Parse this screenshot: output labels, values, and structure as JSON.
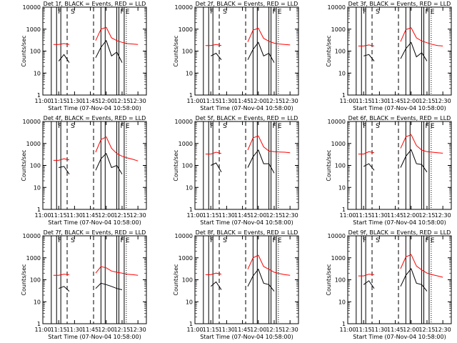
{
  "x_ticks": [
    "11:00",
    "11:15",
    "11:30",
    "11:45",
    "12:00",
    "12:15",
    "12:30"
  ],
  "y_ticks": [
    "1",
    "10",
    "100",
    "1000",
    "10000"
  ],
  "ylabel": "Counts/sec",
  "xlabel": "Start Time (07-Nov-04 10:58:00)",
  "colors": {
    "events": "#000000",
    "lld": "#ff0000"
  },
  "chart_data": [
    {
      "type": "line",
      "title": "Det 1f, BLACK = Events, RED = LLD",
      "xlabel": "Start Time (07-Nov-04 10:58:00)",
      "ylabel": "Counts/sec",
      "yscale": "log",
      "ylim": [
        1,
        10000
      ],
      "x": [
        "11:00",
        "11:10",
        "11:15",
        "11:20",
        "11:25",
        "11:30",
        "11:35",
        "11:40",
        "11:45",
        "11:50",
        "11:55",
        "12:00",
        "12:05",
        "12:10",
        "12:15",
        "12:20",
        "12:25",
        "12:30",
        "12:35"
      ],
      "series": [
        {
          "name": "Events",
          "values": [
            null,
            null,
            35,
            70,
            30,
            null,
            null,
            null,
            null,
            50,
            150,
            300,
            60,
            90,
            30,
            null,
            null,
            null,
            null
          ]
        },
        {
          "name": "LLD",
          "values": [
            null,
            200,
            200,
            220,
            200,
            null,
            null,
            null,
            null,
            300,
            1000,
            1200,
            400,
            300,
            250,
            220,
            210,
            200,
            null
          ]
        }
      ]
    },
    {
      "type": "line",
      "title": "Det 2f, BLACK = Events, RED = LLD",
      "xlabel": "Start Time (07-Nov-04 10:58:00)",
      "ylabel": "Counts/sec",
      "yscale": "log",
      "ylim": [
        1,
        10000
      ],
      "x": [
        "11:00",
        "11:10",
        "11:15",
        "11:20",
        "11:25",
        "11:30",
        "11:35",
        "11:40",
        "11:45",
        "11:50",
        "11:55",
        "12:00",
        "12:05",
        "12:10",
        "12:15",
        "12:20",
        "12:25",
        "12:30",
        "12:35"
      ],
      "series": [
        {
          "name": "Events",
          "values": [
            null,
            null,
            60,
            80,
            40,
            null,
            null,
            null,
            null,
            40,
            120,
            250,
            60,
            80,
            30,
            null,
            null,
            null,
            null
          ]
        },
        {
          "name": "LLD",
          "values": [
            null,
            180,
            180,
            200,
            180,
            null,
            null,
            null,
            null,
            260,
            900,
            1100,
            380,
            280,
            230,
            210,
            200,
            190,
            null
          ]
        }
      ]
    },
    {
      "type": "line",
      "title": "Det 3f, BLACK = Events, RED = LLD",
      "xlabel": "Start Time (07-Nov-04 10:58:00)",
      "ylabel": "Counts/sec",
      "yscale": "log",
      "ylim": [
        1,
        10000
      ],
      "x": [
        "11:00",
        "11:10",
        "11:15",
        "11:20",
        "11:25",
        "11:30",
        "11:35",
        "11:40",
        "11:45",
        "11:50",
        "11:55",
        "12:00",
        "12:05",
        "12:10",
        "12:15",
        "12:20",
        "12:25",
        "12:30",
        "12:35"
      ],
      "series": [
        {
          "name": "Events",
          "values": [
            null,
            null,
            60,
            70,
            35,
            null,
            null,
            null,
            null,
            45,
            130,
            250,
            55,
            85,
            35,
            null,
            null,
            null,
            null
          ]
        },
        {
          "name": "LLD",
          "values": [
            null,
            170,
            170,
            190,
            170,
            null,
            null,
            null,
            null,
            270,
            950,
            1150,
            400,
            290,
            240,
            200,
            180,
            170,
            null
          ]
        }
      ]
    },
    {
      "type": "line",
      "title": "Det 4f, BLACK = Events, RED = LLD",
      "xlabel": "Start Time (07-Nov-04 10:58:00)",
      "ylabel": "Counts/sec",
      "yscale": "log",
      "ylim": [
        1,
        10000
      ],
      "x": [
        "11:00",
        "11:10",
        "11:15",
        "11:20",
        "11:25",
        "11:30",
        "11:35",
        "11:40",
        "11:45",
        "11:50",
        "11:55",
        "12:00",
        "12:05",
        "12:10",
        "12:15",
        "12:20",
        "12:25",
        "12:30",
        "12:35"
      ],
      "series": [
        {
          "name": "Events",
          "values": [
            null,
            null,
            80,
            90,
            40,
            null,
            null,
            null,
            null,
            60,
            200,
            350,
            80,
            100,
            40,
            null,
            null,
            null,
            null
          ]
        },
        {
          "name": "LLD",
          "values": [
            null,
            170,
            170,
            200,
            180,
            null,
            null,
            null,
            null,
            400,
            1500,
            2000,
            600,
            350,
            260,
            220,
            190,
            160,
            null
          ]
        }
      ]
    },
    {
      "type": "line",
      "title": "Det 5f, BLACK = Events, RED = LLD",
      "xlabel": "Start Time (07-Nov-04 10:58:00)",
      "ylabel": "Counts/sec",
      "yscale": "log",
      "ylim": [
        1,
        10000
      ],
      "x": [
        "11:00",
        "11:10",
        "11:15",
        "11:20",
        "11:25",
        "11:30",
        "11:35",
        "11:40",
        "11:45",
        "11:50",
        "11:55",
        "12:00",
        "12:05",
        "12:10",
        "12:15",
        "12:20",
        "12:25",
        "12:30",
        "12:35"
      ],
      "series": [
        {
          "name": "Events",
          "values": [
            null,
            null,
            100,
            130,
            50,
            null,
            null,
            null,
            null,
            80,
            250,
            500,
            120,
            120,
            45,
            null,
            null,
            null,
            null
          ]
        },
        {
          "name": "LLD",
          "values": [
            null,
            330,
            330,
            400,
            350,
            null,
            null,
            null,
            null,
            500,
            1800,
            2200,
            700,
            450,
            420,
            410,
            400,
            380,
            null
          ]
        }
      ]
    },
    {
      "type": "line",
      "title": "Det 6f, BLACK = Events, RED = LLD",
      "xlabel": "Start Time (07-Nov-04 10:58:00)",
      "ylabel": "Counts/sec",
      "yscale": "log",
      "ylim": [
        1,
        10000
      ],
      "x": [
        "11:00",
        "11:10",
        "11:15",
        "11:20",
        "11:25",
        "11:30",
        "11:35",
        "11:40",
        "11:45",
        "11:50",
        "11:55",
        "12:00",
        "12:05",
        "12:10",
        "12:15",
        "12:20",
        "12:25",
        "12:30",
        "12:35"
      ],
      "series": [
        {
          "name": "Events",
          "values": [
            null,
            null,
            90,
            120,
            60,
            null,
            null,
            null,
            null,
            80,
            260,
            520,
            120,
            110,
            50,
            null,
            null,
            null,
            null
          ]
        },
        {
          "name": "LLD",
          "values": [
            null,
            330,
            330,
            420,
            380,
            null,
            null,
            null,
            null,
            600,
            2000,
            2500,
            800,
            500,
            420,
            400,
            380,
            360,
            null
          ]
        }
      ]
    },
    {
      "type": "line",
      "title": "Det 7f, BLACK = Events, RED = LLD",
      "xlabel": "Start Time (07-Nov-04 10:58:00)",
      "ylabel": "Counts/sec",
      "yscale": "log",
      "ylim": [
        1,
        10000
      ],
      "x": [
        "11:00",
        "11:10",
        "11:15",
        "11:20",
        "11:25",
        "11:30",
        "11:35",
        "11:40",
        "11:45",
        "11:50",
        "11:55",
        "12:00",
        "12:05",
        "12:10",
        "12:15",
        "12:20",
        "12:25",
        "12:30",
        "12:35"
      ],
      "series": [
        {
          "name": "Events",
          "values": [
            null,
            null,
            40,
            50,
            30,
            null,
            null,
            null,
            null,
            40,
            70,
            60,
            50,
            40,
            35,
            null,
            null,
            null,
            null
          ]
        },
        {
          "name": "LLD",
          "values": [
            null,
            160,
            160,
            180,
            170,
            null,
            null,
            null,
            null,
            200,
            400,
            350,
            250,
            220,
            200,
            180,
            170,
            160,
            null
          ]
        }
      ]
    },
    {
      "type": "line",
      "title": "Det 8f, BLACK = Events, RED = LLD",
      "xlabel": "Start Time (07-Nov-04 10:58:00)",
      "ylabel": "Counts/sec",
      "yscale": "log",
      "ylim": [
        1,
        10000
      ],
      "x": [
        "11:00",
        "11:10",
        "11:15",
        "11:20",
        "11:25",
        "11:30",
        "11:35",
        "11:40",
        "11:45",
        "11:50",
        "11:55",
        "12:00",
        "12:05",
        "12:10",
        "12:15",
        "12:20",
        "12:25",
        "12:30",
        "12:35"
      ],
      "series": [
        {
          "name": "Events",
          "values": [
            null,
            null,
            50,
            80,
            35,
            null,
            null,
            null,
            null,
            50,
            150,
            300,
            70,
            60,
            30,
            null,
            null,
            null,
            null
          ]
        },
        {
          "name": "LLD",
          "values": [
            null,
            170,
            170,
            200,
            180,
            null,
            null,
            null,
            null,
            300,
            1000,
            1300,
            400,
            300,
            220,
            190,
            170,
            160,
            null
          ]
        }
      ]
    },
    {
      "type": "line",
      "title": "Det 9f, BLACK = Events, RED = LLD",
      "xlabel": "Start Time (07-Nov-04 10:58:00)",
      "ylabel": "Counts/sec",
      "yscale": "log",
      "ylim": [
        1,
        10000
      ],
      "x": [
        "11:00",
        "11:10",
        "11:15",
        "11:20",
        "11:25",
        "11:30",
        "11:35",
        "11:40",
        "11:45",
        "11:50",
        "11:55",
        "12:00",
        "12:05",
        "12:10",
        "12:15",
        "12:20",
        "12:25",
        "12:30",
        "12:35"
      ],
      "series": [
        {
          "name": "Events",
          "values": [
            null,
            null,
            60,
            90,
            40,
            null,
            null,
            null,
            null,
            50,
            160,
            320,
            70,
            60,
            30,
            null,
            null,
            null,
            null
          ]
        },
        {
          "name": "LLD",
          "values": [
            null,
            150,
            150,
            180,
            170,
            null,
            null,
            null,
            null,
            320,
            1100,
            1400,
            420,
            280,
            200,
            170,
            150,
            130,
            null
          ]
        }
      ]
    }
  ]
}
